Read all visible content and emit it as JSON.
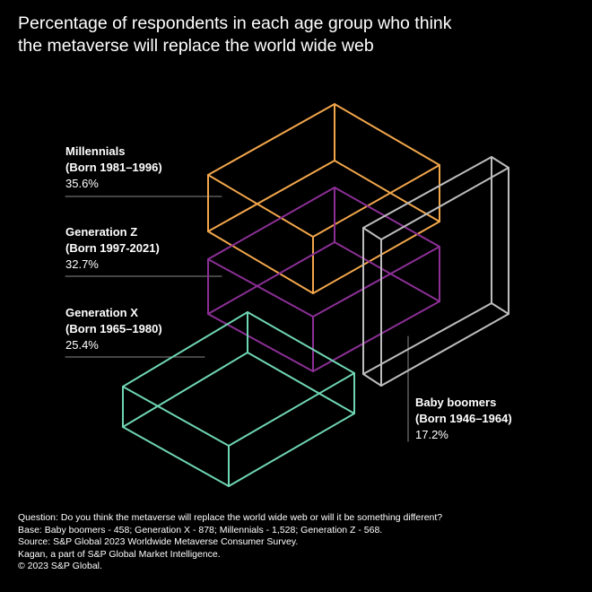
{
  "chart_data": {
    "type": "isometric-box",
    "title_lines": [
      "Percentage of respondents in each age group who think",
      "the metaverse will replace the world wide web"
    ],
    "unit": "%",
    "series": [
      {
        "name": "Millennials",
        "born": "(Born 1981–1996)",
        "value": 35.6,
        "value_label": "35.6%",
        "color": "#F2A64B"
      },
      {
        "name": "Generation Z",
        "born": "(Born 1997-2021)",
        "value": 32.7,
        "value_label": "32.7%",
        "color": "#8B2F95"
      },
      {
        "name": "Generation X",
        "born": "(Born 1965–1980)",
        "value": 25.4,
        "value_label": "25.4%",
        "color": "#6FD6B2"
      },
      {
        "name": "Baby boomers",
        "born": "(Born 1946–1964)",
        "value": 17.2,
        "value_label": "17.2%",
        "color": "#BDBDBD"
      }
    ]
  },
  "footer": {
    "question": "Question: Do you think the metaverse will replace the world wide web or will it be something different?",
    "base": "Base: Baby boomers - 458; Generation X - 878; Millennials - 1,528; Generation Z - 568.",
    "source": "Source: S&P Global 2023 Worldwide Metaverse Consumer Survey.",
    "kagan": "Kagan, a part of S&P Global Market Intelligence.",
    "copyright": "© 2023 S&P Global."
  }
}
